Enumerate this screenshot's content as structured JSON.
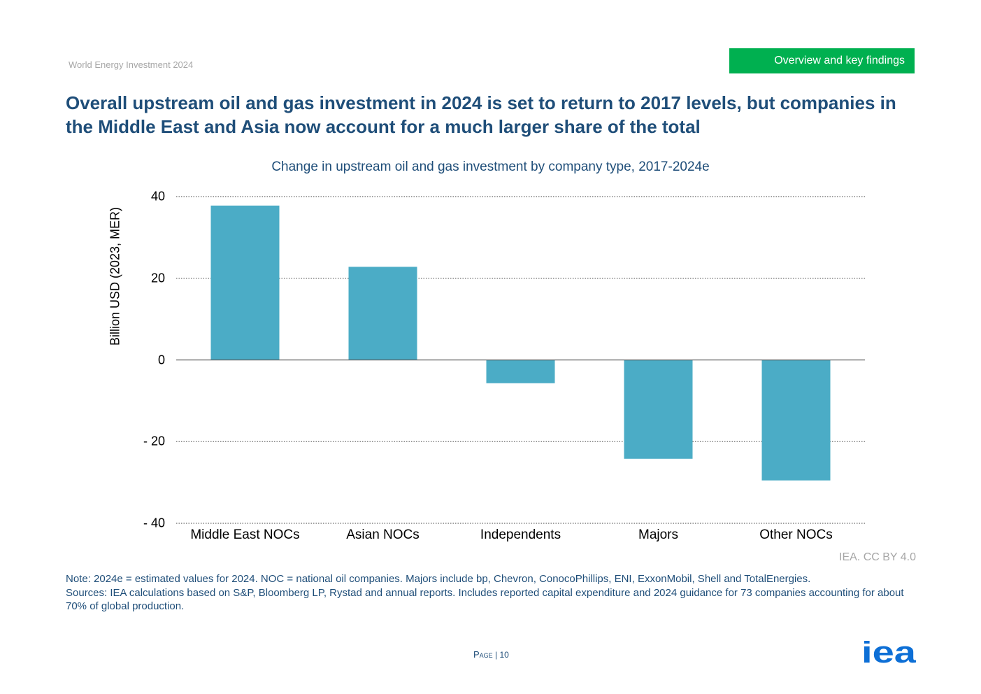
{
  "header": {
    "report_title": "World Energy Investment 2024",
    "section_label": "Overview and key findings"
  },
  "slide_title": "Overall upstream oil and gas investment in 2024 is set to return to 2017 levels, but companies in the Middle East and Asia now account for a much larger share of the total",
  "chart_data": {
    "type": "bar",
    "title": "Change in upstream oil and gas investment by company type, 2017-2024e",
    "xlabel": "",
    "ylabel": "Billion USD (2023, MER)",
    "categories": [
      "Middle East NOCs",
      "Asian NOCs",
      "Independents",
      "Majors",
      "Other NOCs"
    ],
    "values": [
      37.8,
      22.8,
      -5.7,
      -24.2,
      -29.5
    ],
    "ylim": [
      -40,
      40
    ],
    "yticks": [
      40,
      20,
      0,
      -20,
      -40
    ],
    "ytick_labels": [
      "40",
      "20",
      "0",
      "- 20",
      "- 40"
    ],
    "grid": "horizontal dotted",
    "legend": "none",
    "bar_color": "#4bacc6"
  },
  "credit": "IEA. CC BY 4.0",
  "note": {
    "line1": "Note: 2024e = estimated values for 2024. NOC = national oil companies. Majors include bp, Chevron, ConocoPhillips, ENI, ExxonMobil, Shell and TotalEnergies.",
    "line2": "Sources: IEA calculations based on S&P, Bloomberg LP, Rystad and annual reports. Includes reported capital expenditure and 2024 guidance for 73 companies accounting for about 70% of global production."
  },
  "footer": {
    "page_word": "Page",
    "page_number": "| 10",
    "logo_text": "iea"
  },
  "colors": {
    "title": "#1f4e79",
    "accent_green": "#00b050",
    "logo_blue": "#0d6fd6"
  }
}
